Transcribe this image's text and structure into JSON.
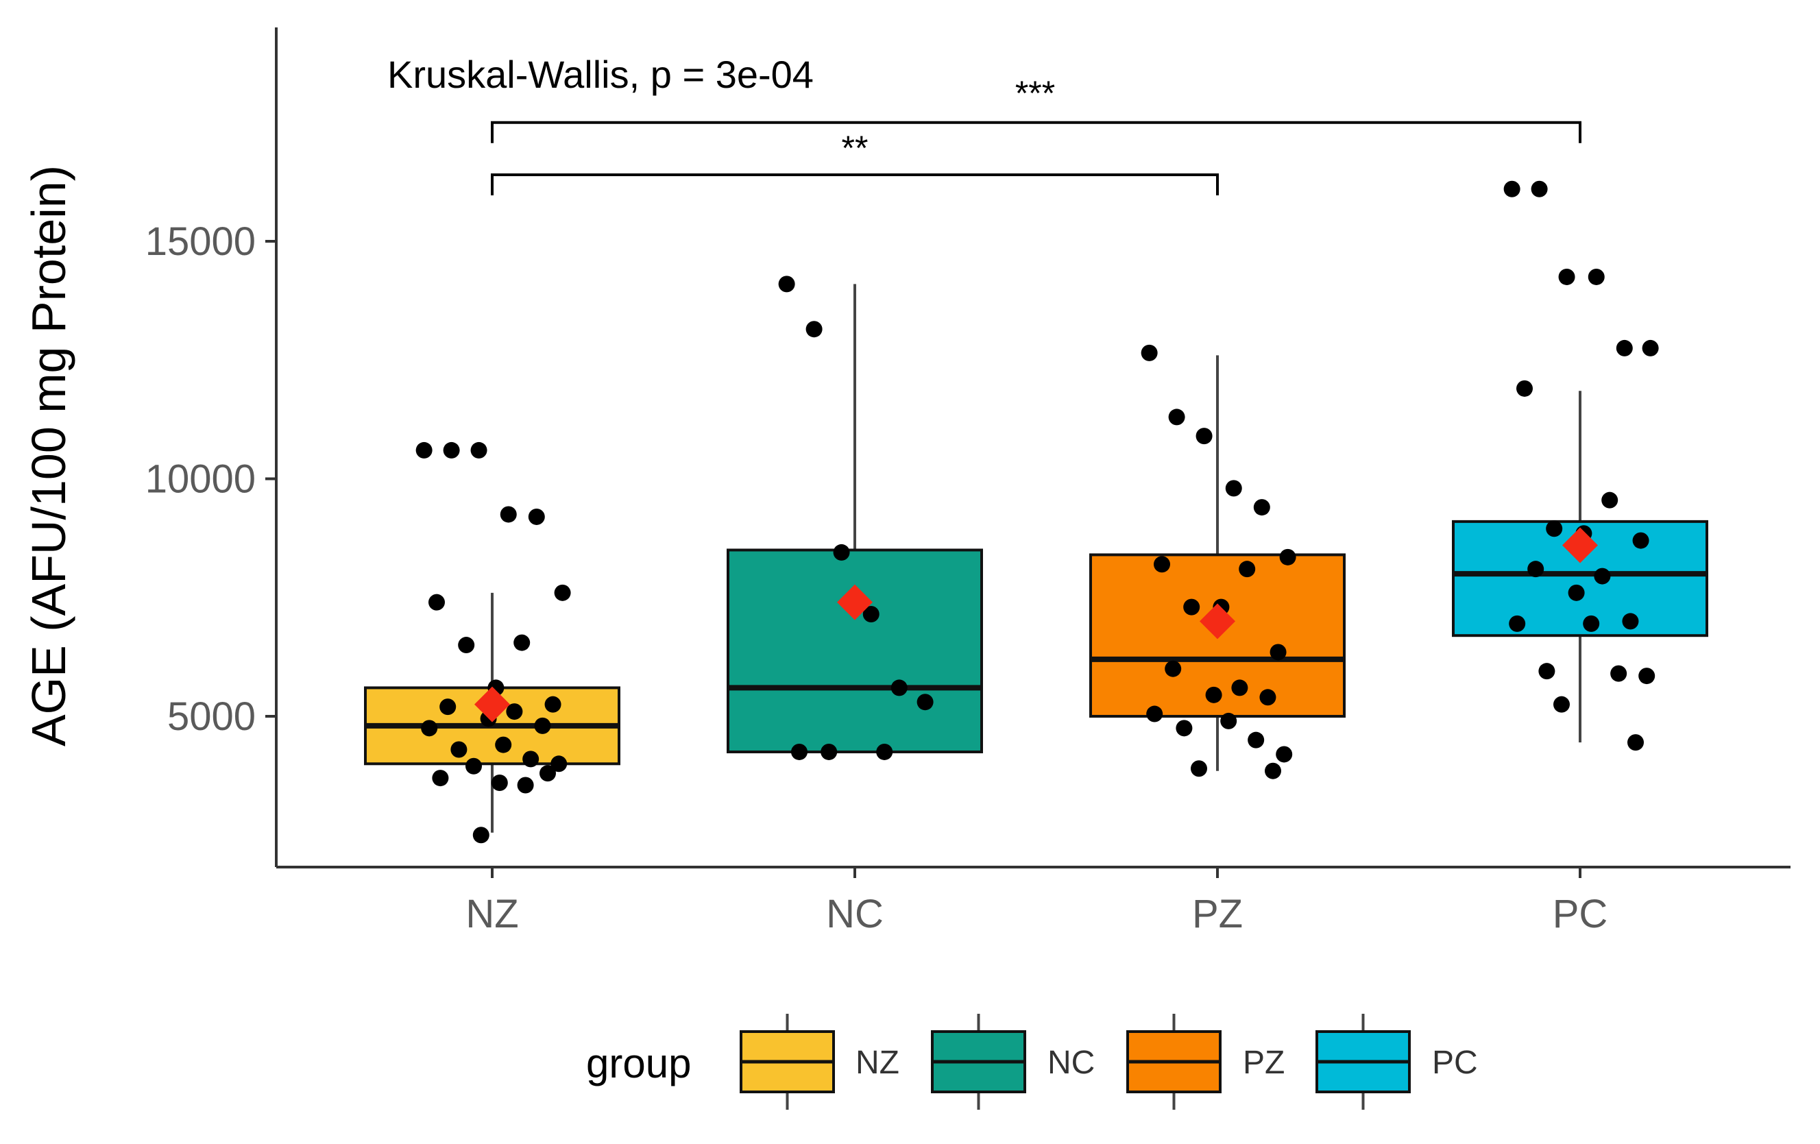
{
  "chart_data": {
    "type": "box",
    "title": "",
    "xlabel": "",
    "ylabel": "AGE (AFU/100 mg Protein)",
    "ylim": [
      1500,
      19000
    ],
    "yticks": [
      5000,
      10000,
      15000
    ],
    "categories": [
      "NZ",
      "NC",
      "PZ",
      "PC"
    ],
    "colors": [
      "#F9C22E",
      "#0E9E87",
      "#F98300",
      "#00BAD8"
    ],
    "mean_color": "#F42A16",
    "boxes": [
      {
        "group": "NZ",
        "whisker_low": 2550,
        "q1": 4000,
        "median": 4800,
        "q3": 5600,
        "whisker_high": 7600,
        "mean": 5250,
        "points": [
          10600,
          10600,
          10600,
          9250,
          9200,
          7600,
          7400,
          6550,
          6500,
          5600,
          5250,
          5200,
          5100,
          4950,
          4800,
          4750,
          4400,
          4300,
          4100,
          4000,
          3950,
          3800,
          3700,
          3600,
          3550,
          2500
        ]
      },
      {
        "group": "NC",
        "whisker_low": 4250,
        "q1": 4250,
        "median": 5600,
        "q3": 8500,
        "whisker_high": 14100,
        "mean": 7400,
        "points": [
          14100,
          13150,
          8450,
          7150,
          5600,
          5300,
          4250,
          4250,
          4250
        ]
      },
      {
        "group": "PZ",
        "whisker_low": 3850,
        "q1": 5000,
        "median": 6200,
        "q3": 8400,
        "whisker_high": 12600,
        "mean": 7000,
        "points": [
          12650,
          11300,
          10900,
          9800,
          9400,
          8350,
          8200,
          8100,
          7300,
          7300,
          6350,
          6000,
          5600,
          5450,
          5400,
          5050,
          4900,
          4750,
          4500,
          4200,
          3900,
          3850
        ]
      },
      {
        "group": "PC",
        "whisker_low": 4450,
        "q1": 6700,
        "median": 8000,
        "q3": 9100,
        "whisker_high": 11850,
        "mean": 8600,
        "points": [
          16100,
          16100,
          14250,
          14250,
          12750,
          12750,
          11900,
          9550,
          8950,
          8850,
          8700,
          8100,
          7950,
          7600,
          7000,
          6950,
          6950,
          5950,
          5900,
          5850,
          5250,
          4450
        ]
      }
    ],
    "annotations": {
      "test_label": "Kruskal-Wallis, p = 3e-04",
      "comparisons": [
        {
          "from": "NZ",
          "to": "PC",
          "label": "***",
          "y": 17500
        },
        {
          "from": "NZ",
          "to": "PZ",
          "label": "**",
          "y": 16400
        }
      ]
    },
    "legend": {
      "title": "group",
      "position": "bottom",
      "entries": [
        "NZ",
        "NC",
        "PZ",
        "PC"
      ]
    }
  }
}
